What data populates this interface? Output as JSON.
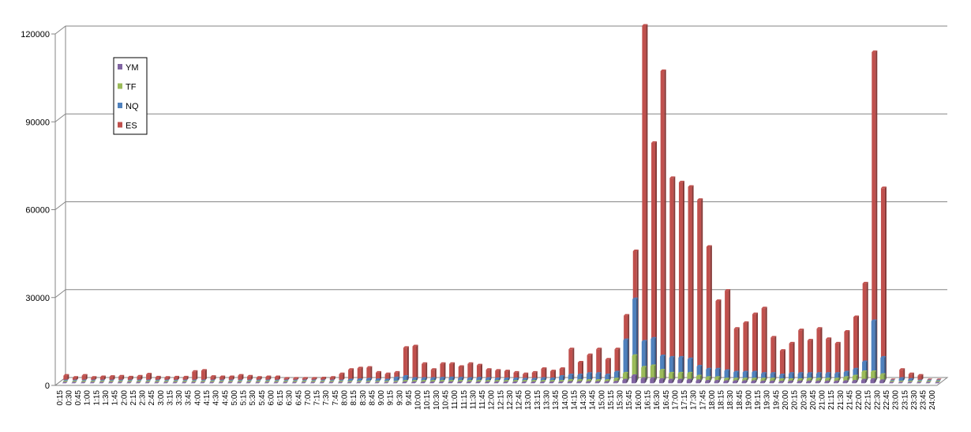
{
  "chart_data": {
    "type": "bar",
    "title": "",
    "xlabel": "",
    "ylabel": "",
    "ylim": [
      0,
      120000
    ],
    "yticks": [
      "0",
      "30000",
      "60000",
      "90000",
      "120000"
    ],
    "grid": true,
    "legend_position": "top-left",
    "categories": [
      "0:15",
      "0:30",
      "0:45",
      "1:00",
      "1:15",
      "1:30",
      "1:45",
      "2:00",
      "2:15",
      "2:30",
      "2:45",
      "3:00",
      "3:15",
      "3:30",
      "3:45",
      "4:00",
      "4:15",
      "4:30",
      "4:45",
      "5:00",
      "5:15",
      "5:30",
      "5:45",
      "6:00",
      "6:15",
      "6:30",
      "6:45",
      "7:00",
      "7:15",
      "7:30",
      "7:45",
      "8:00",
      "8:15",
      "8:30",
      "8:45",
      "9:00",
      "9:15",
      "9:30",
      "9:45",
      "10:00",
      "10:15",
      "10:30",
      "10:45",
      "11:00",
      "11:15",
      "11:30",
      "11:45",
      "12:00",
      "12:15",
      "12:30",
      "12:45",
      "13:00",
      "13:15",
      "13:30",
      "13:45",
      "14:00",
      "14:15",
      "14:30",
      "14:45",
      "15:00",
      "15:15",
      "15:30",
      "15:45",
      "16:00",
      "16:15",
      "16:30",
      "16:45",
      "17:00",
      "17:15",
      "17:30",
      "17:45",
      "18:00",
      "18:15",
      "18:30",
      "18:45",
      "19:00",
      "19:15",
      "19:30",
      "19:45",
      "20:00",
      "20:15",
      "20:30",
      "20:45",
      "21:00",
      "21:15",
      "21:30",
      "21:45",
      "22:00",
      "22:15",
      "22:30",
      "22:45",
      "23:00",
      "23:15",
      "23:30",
      "23:45",
      "24:00"
    ],
    "series": [
      {
        "name": "ES",
        "color": "#c0504d",
        "values": [
          1500,
          800,
          1500,
          800,
          1000,
          1100,
          1200,
          900,
          1200,
          1900,
          900,
          800,
          900,
          900,
          2800,
          3200,
          1100,
          1000,
          1000,
          1500,
          1200,
          800,
          1000,
          1000,
          500,
          500,
          500,
          500,
          600,
          800,
          2000,
          3500,
          4000,
          4200,
          2500,
          2000,
          2500,
          11000,
          11500,
          5500,
          3500,
          5500,
          5500,
          4500,
          5500,
          5000,
          3500,
          3200,
          3000,
          2500,
          2000,
          2500,
          3800,
          3000,
          3800,
          10500,
          6000,
          8500,
          10500,
          7000,
          10500,
          22000,
          44000,
          121000,
          81000,
          105500,
          69000,
          67500,
          66000,
          61500,
          45500,
          27000,
          30500,
          17500,
          19500,
          22500,
          24500,
          14500,
          10000,
          12500,
          17000,
          13500,
          17500,
          14000,
          12500,
          16500,
          21500,
          33000,
          112000,
          65500,
          0,
          3500,
          2000,
          1500,
          0,
          0
        ]
      },
      {
        "name": "NQ",
        "color": "#4f81bd",
        "values": [
          0,
          0,
          0,
          0,
          0,
          0,
          0,
          0,
          0,
          0,
          0,
          0,
          0,
          0,
          0,
          0,
          0,
          0,
          0,
          0,
          0,
          0,
          0,
          0,
          0,
          0,
          0,
          0,
          0,
          0,
          0,
          300,
          400,
          600,
          400,
          300,
          1000,
          1500,
          800,
          800,
          800,
          900,
          1000,
          900,
          800,
          900,
          800,
          700,
          700,
          700,
          600,
          600,
          800,
          700,
          1500,
          2000,
          2000,
          2500,
          2500,
          2000,
          3000,
          14000,
          28000,
          13500,
          14500,
          8500,
          8000,
          8000,
          7500,
          5000,
          4000,
          4000,
          3500,
          3000,
          3000,
          3000,
          2500,
          2500,
          2000,
          2500,
          2500,
          2500,
          2500,
          2500,
          2500,
          3000,
          4000,
          6500,
          20500,
          8000,
          0,
          800,
          500,
          0,
          0,
          0
        ]
      },
      {
        "name": "TF",
        "color": "#9bbb59",
        "values": [
          0,
          0,
          0,
          0,
          0,
          0,
          0,
          0,
          0,
          0,
          0,
          0,
          0,
          0,
          0,
          0,
          0,
          0,
          0,
          0,
          0,
          0,
          0,
          0,
          0,
          0,
          0,
          0,
          0,
          0,
          0,
          0,
          0,
          0,
          0,
          0,
          0,
          200,
          200,
          200,
          200,
          200,
          200,
          200,
          200,
          200,
          200,
          200,
          200,
          200,
          200,
          200,
          200,
          200,
          200,
          500,
          500,
          500,
          500,
          500,
          1000,
          3000,
          9000,
          5000,
          5500,
          4000,
          3000,
          3000,
          3000,
          2000,
          1500,
          1500,
          1000,
          1000,
          1000,
          1000,
          1000,
          1000,
          800,
          800,
          800,
          1000,
          1000,
          1000,
          1000,
          1500,
          2000,
          3500,
          3500,
          2500,
          0,
          0,
          0,
          0,
          0,
          0
        ]
      },
      {
        "name": "YM",
        "color": "#8064a2",
        "values": [
          0,
          0,
          0,
          0,
          0,
          0,
          0,
          0,
          0,
          0,
          0,
          0,
          0,
          0,
          0,
          0,
          0,
          0,
          0,
          0,
          0,
          0,
          0,
          0,
          0,
          0,
          0,
          0,
          0,
          0,
          0,
          0,
          0,
          0,
          0,
          0,
          0,
          100,
          100,
          100,
          100,
          100,
          100,
          100,
          100,
          100,
          100,
          100,
          100,
          100,
          100,
          100,
          100,
          100,
          100,
          200,
          200,
          200,
          200,
          200,
          300,
          1000,
          2500,
          1500,
          1500,
          1200,
          1000,
          1000,
          1000,
          800,
          600,
          600,
          500,
          500,
          500,
          500,
          400,
          400,
          300,
          400,
          400,
          400,
          400,
          400,
          400,
          500,
          600,
          1000,
          1200,
          800,
          0,
          0,
          0,
          0,
          0,
          0
        ]
      }
    ],
    "legend_entries": [
      "YM",
      "TF",
      "NQ",
      "ES"
    ]
  }
}
